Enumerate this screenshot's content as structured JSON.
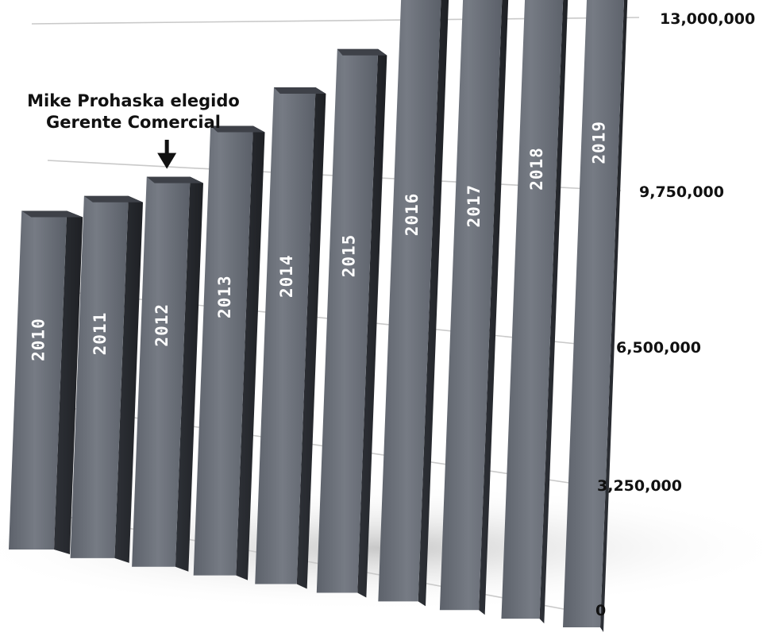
{
  "chart_data": {
    "type": "bar",
    "title": "",
    "xlabel": "",
    "ylabel": "",
    "categories": [
      "2010",
      "2011",
      "2012",
      "2013",
      "2014",
      "2015",
      "2016",
      "2017",
      "2018",
      "2019"
    ],
    "values": [
      9150000,
      9150000,
      9250000,
      10050000,
      10500000,
      10900000,
      11900000,
      11850000,
      12600000,
      13000000
    ],
    "ylim": [
      0,
      13000000
    ],
    "yticks": [
      {
        "value": 0,
        "label": "0"
      },
      {
        "value": 3250000,
        "label": "3,250,000"
      },
      {
        "value": 6500000,
        "label": "6,500,000"
      },
      {
        "value": 9750000,
        "label": "9,750,000"
      },
      {
        "value": 13000000,
        "label": "13,000,000"
      }
    ],
    "grid": true,
    "bar_color": "#6b7079",
    "annotation": {
      "lines": [
        "Mike Prohaska elegido",
        "Gerente Comercial"
      ],
      "category": "2012"
    }
  }
}
